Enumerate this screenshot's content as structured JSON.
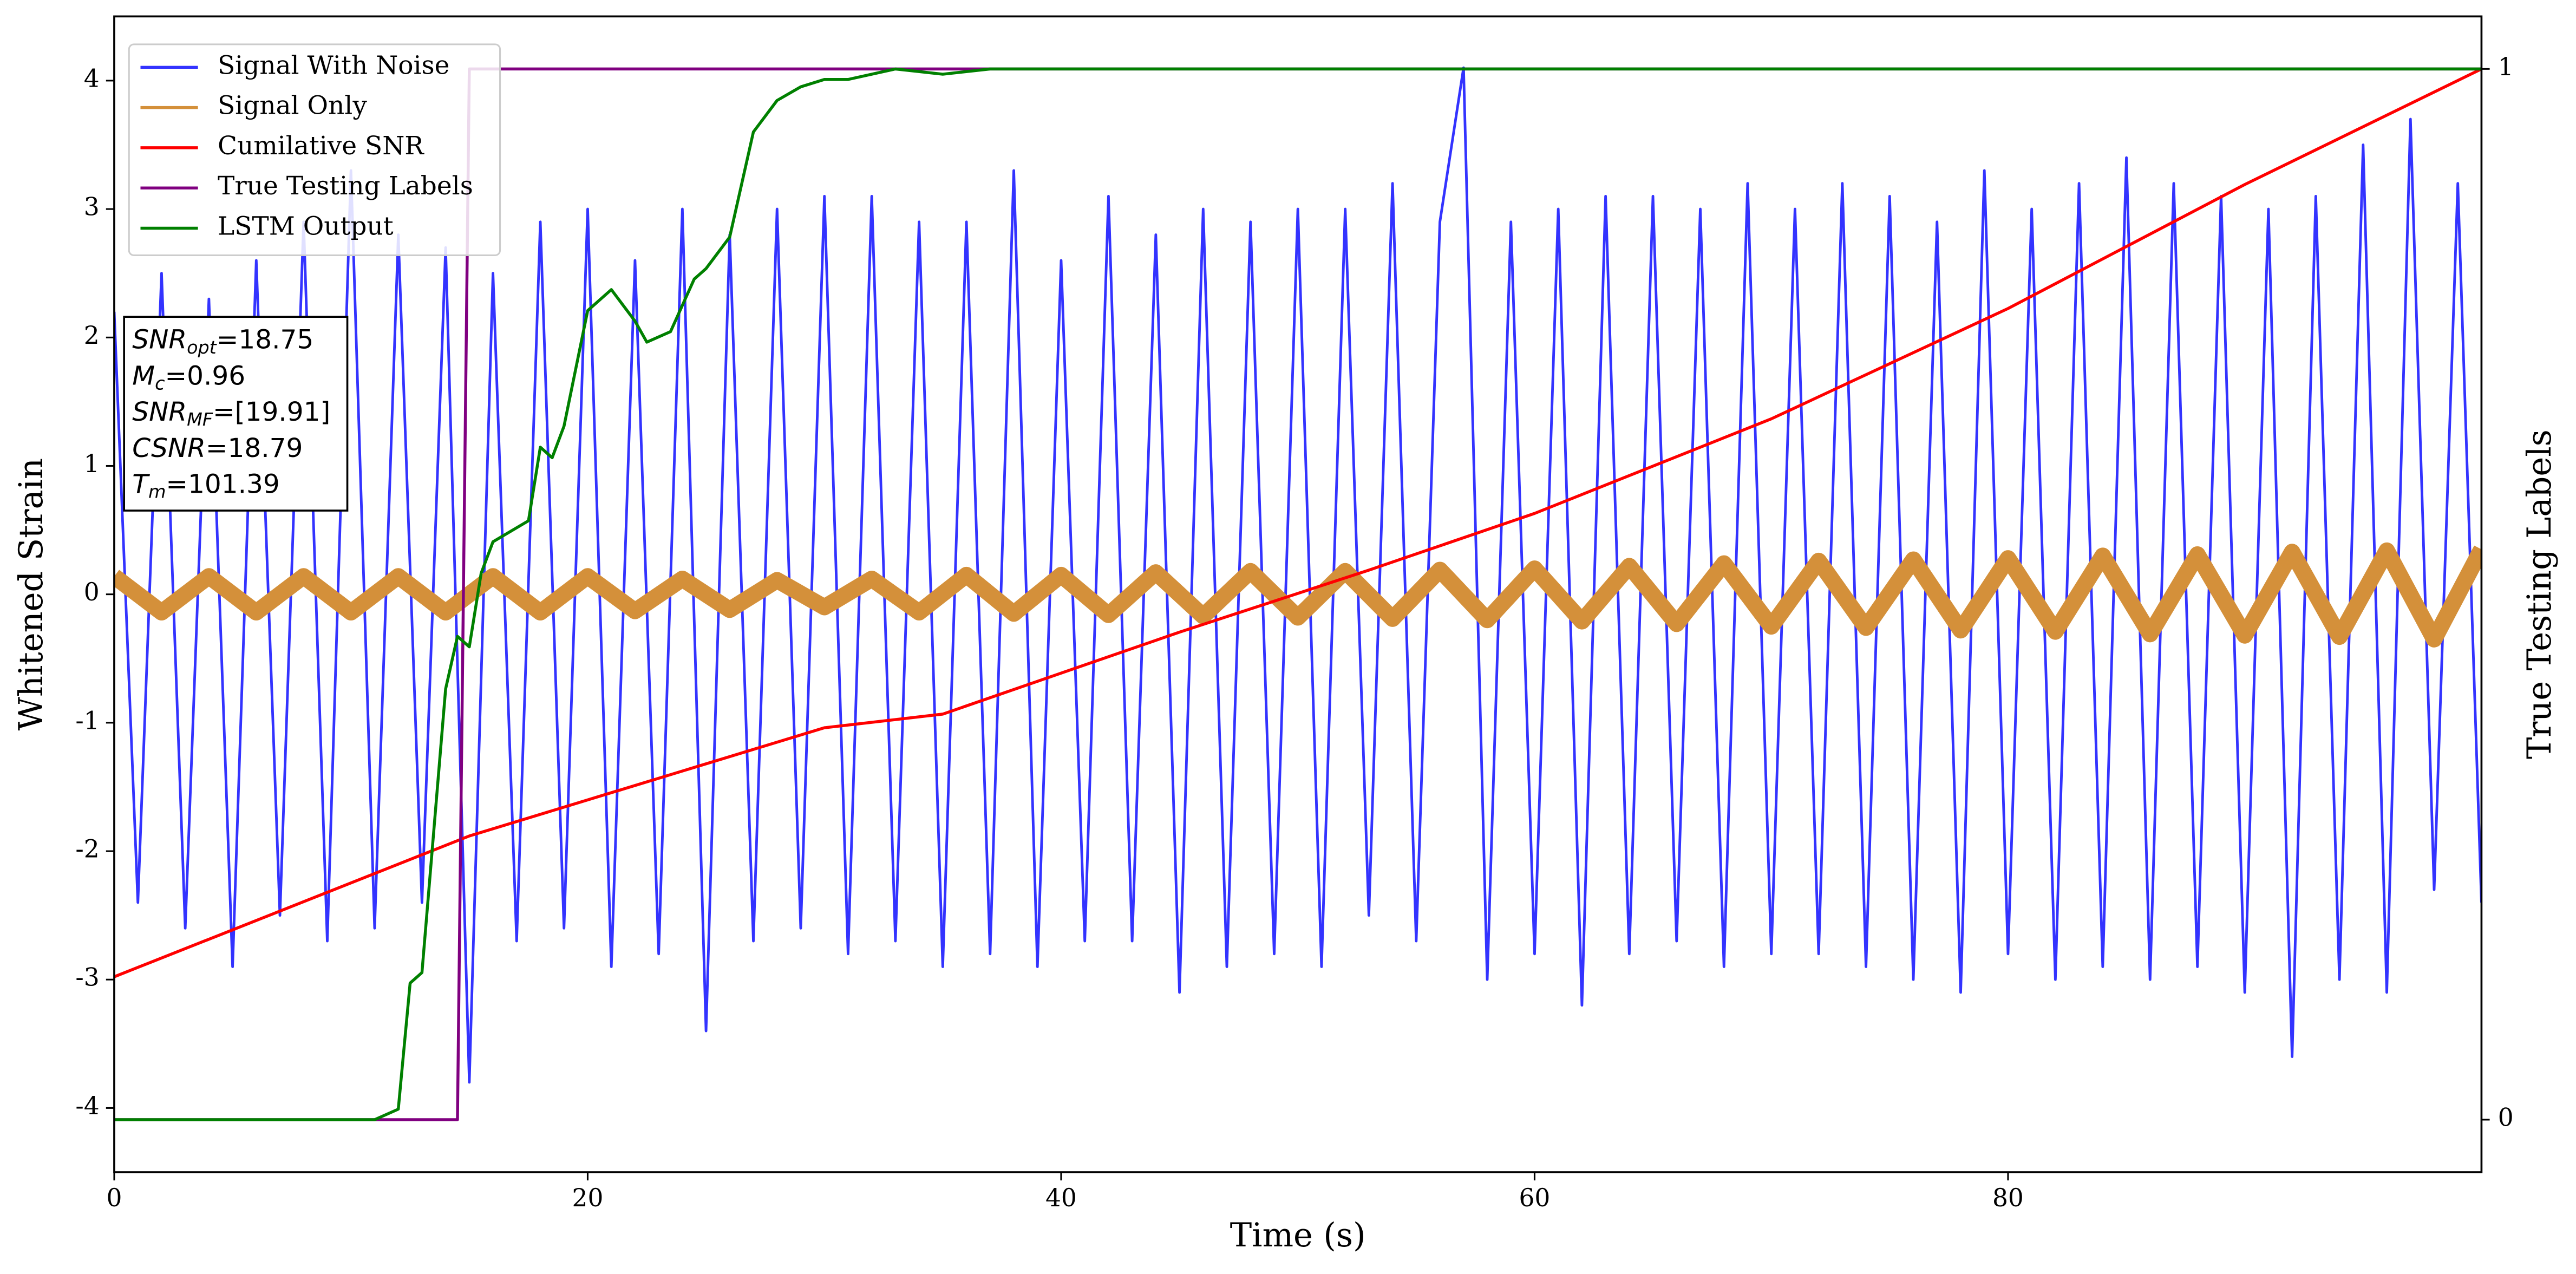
{
  "chart_data": {
    "type": "line",
    "xlabel": "Time (s)",
    "ylabel": "Whitened Strain",
    "y2label": "True Testing Labels",
    "xlim": [
      0,
      100
    ],
    "ylim": [
      -4.5,
      4.5
    ],
    "y2lim": [
      -0.05,
      1.05
    ],
    "xticks": [
      0,
      20,
      40,
      60,
      80
    ],
    "yticks": [
      -4,
      -3,
      -2,
      -1,
      0,
      1,
      2,
      3,
      4
    ],
    "y2ticks": [
      0,
      1
    ],
    "legend": "upper left",
    "annotation": [
      {
        "symbol": "SNR",
        "subscript": "opt",
        "text": "=18.75"
      },
      {
        "symbol": "M",
        "subscript": "c",
        "text": "=0.96"
      },
      {
        "symbol": "SNR",
        "subscript": "MF",
        "text": "=[19.91]"
      },
      {
        "symbol": "CSNR",
        "subscript": "",
        "text": "=18.79"
      },
      {
        "symbol": "T",
        "subscript": "m",
        "text": "=101.39"
      }
    ],
    "series": [
      {
        "name": "Signal With Noise",
        "color": "#3333ff",
        "axis": "y",
        "x": [
          0,
          1,
          2,
          3,
          4,
          5,
          6,
          7,
          8,
          9,
          10,
          11,
          12,
          13,
          14,
          15,
          16,
          17,
          18,
          19,
          20,
          21,
          22,
          23,
          24,
          25,
          26,
          27,
          28,
          29,
          30,
          31,
          32,
          33,
          34,
          35,
          36,
          37,
          38,
          39,
          40,
          41,
          42,
          43,
          44,
          45,
          46,
          47,
          48,
          49,
          50,
          51,
          52,
          53,
          54,
          55,
          56,
          57,
          58,
          59,
          60,
          61,
          62,
          63,
          64,
          65,
          66,
          67,
          68,
          69,
          70,
          71,
          72,
          73,
          74,
          75,
          76,
          77,
          78,
          79,
          80,
          81,
          82,
          83,
          84,
          85,
          86,
          87,
          88,
          89,
          90,
          91,
          92,
          93,
          94,
          95,
          96,
          97,
          98,
          99,
          100
        ],
        "values": [
          2.2,
          -2.4,
          2.5,
          -2.6,
          2.3,
          -2.9,
          2.6,
          -2.5,
          2.9,
          -2.7,
          3.3,
          -2.6,
          2.8,
          -2.4,
          2.7,
          -3.8,
          2.5,
          -2.7,
          2.9,
          -2.6,
          3.0,
          -2.9,
          2.6,
          -2.8,
          3.0,
          -3.4,
          2.8,
          -2.7,
          3.0,
          -2.6,
          3.1,
          -2.8,
          3.1,
          -2.7,
          2.9,
          -2.9,
          2.9,
          -2.8,
          3.3,
          -2.9,
          2.6,
          -2.7,
          3.1,
          -2.7,
          2.8,
          -3.1,
          3.0,
          -2.9,
          2.9,
          -2.8,
          3.0,
          -2.9,
          3.0,
          -2.5,
          3.2,
          -2.7,
          2.9,
          4.1,
          -3.0,
          2.9,
          -2.8,
          3.0,
          -3.2,
          3.1,
          -2.8,
          3.1,
          -2.7,
          3.0,
          -2.9,
          3.2,
          -2.8,
          3.0,
          -2.8,
          3.2,
          -2.9,
          3.1,
          -3.0,
          2.9,
          -3.1,
          3.3,
          -2.8,
          3.0,
          -3.0,
          3.2,
          -2.9,
          3.4,
          -3.0,
          3.2,
          -2.9,
          3.1,
          -3.1,
          3.0,
          -3.6,
          3.1,
          -3.0,
          3.5,
          -3.1,
          3.7,
          -2.3,
          3.2,
          -2.4
        ]
      },
      {
        "name": "Signal Only",
        "color": "#d4903a",
        "axis": "y",
        "x": [
          0,
          2,
          4,
          6,
          8,
          10,
          12,
          14,
          16,
          18,
          20,
          22,
          24,
          26,
          28,
          30,
          32,
          34,
          36,
          38,
          40,
          42,
          44,
          46,
          48,
          50,
          52,
          54,
          56,
          58,
          60,
          62,
          64,
          66,
          68,
          70,
          72,
          74,
          76,
          78,
          80,
          82,
          84,
          86,
          88,
          90,
          92,
          94,
          96,
          98,
          100
        ],
        "values": [
          0.14,
          -0.14,
          0.14,
          -0.14,
          0.14,
          -0.14,
          0.14,
          -0.14,
          0.14,
          -0.14,
          0.14,
          -0.13,
          0.12,
          -0.12,
          0.11,
          -0.1,
          0.12,
          -0.14,
          0.15,
          -0.15,
          0.15,
          -0.16,
          0.17,
          -0.17,
          0.18,
          -0.18,
          0.18,
          -0.19,
          0.19,
          -0.2,
          0.2,
          -0.21,
          0.22,
          -0.23,
          0.24,
          -0.25,
          0.26,
          -0.26,
          0.27,
          -0.28,
          0.28,
          -0.29,
          0.3,
          -0.31,
          0.31,
          -0.32,
          0.33,
          -0.33,
          0.34,
          -0.35,
          0.35
        ]
      },
      {
        "name": "Cumilative SNR",
        "color": "#ff0000",
        "axis": "y2",
        "x": [
          0,
          15,
          30,
          35,
          45,
          53,
          60,
          70,
          80,
          90,
          100
        ],
        "values": [
          0.136,
          0.27,
          0.373,
          0.386,
          0.464,
          0.523,
          0.577,
          0.667,
          0.772,
          0.89,
          1.0
        ]
      },
      {
        "name": "True Testing Labels",
        "color": "#800080",
        "axis": "y2",
        "x": [
          0,
          14.5,
          15,
          100
        ],
        "values": [
          0,
          0,
          1,
          1
        ]
      },
      {
        "name": "LSTM Output",
        "color": "#008000",
        "axis": "y2",
        "x": [
          0,
          11,
          12,
          12.5,
          13,
          14,
          14.5,
          15,
          15.5,
          16,
          17.5,
          18,
          18.5,
          19,
          20,
          21,
          22,
          22.5,
          23.5,
          24.5,
          25,
          26,
          27,
          28,
          29,
          30,
          31,
          33,
          35,
          37,
          40,
          100
        ],
        "values": [
          0,
          0,
          0.01,
          0.13,
          0.14,
          0.41,
          0.46,
          0.45,
          0.52,
          0.55,
          0.57,
          0.64,
          0.63,
          0.66,
          0.77,
          0.79,
          0.76,
          0.74,
          0.75,
          0.8,
          0.81,
          0.84,
          0.94,
          0.97,
          0.983,
          0.99,
          0.99,
          1.0,
          0.995,
          1.0,
          1.0,
          1.0
        ]
      }
    ]
  }
}
